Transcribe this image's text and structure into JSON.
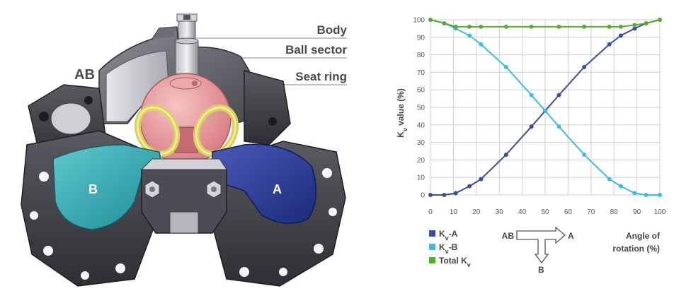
{
  "valve": {
    "labels": {
      "body": "Body",
      "ball_sector": "Ball sector",
      "seat_ring": "Seat ring"
    },
    "ports": {
      "ab": "AB",
      "a": "A",
      "b": "B"
    }
  },
  "chart_data": {
    "type": "line",
    "title": "",
    "ylabel_main": "K",
    "ylabel_sub": "v",
    "ylabel_rest": " value (%)",
    "xlabel_line1": "Angle of",
    "xlabel_line2": "rotation (%)",
    "xlim": [
      0,
      100
    ],
    "ylim": [
      0,
      100
    ],
    "x_ticks": [
      0,
      10,
      20,
      30,
      40,
      50,
      60,
      70,
      80,
      90,
      100
    ],
    "y_ticks": [
      0,
      10,
      20,
      30,
      40,
      50,
      60,
      70,
      80,
      90,
      100
    ],
    "grid": true,
    "legend_position": "bottom-left",
    "series": [
      {
        "name": "Kv-A",
        "name_main": "K",
        "name_sub": "v",
        "name_rest": "-A",
        "color": "#3a4ea0",
        "x": [
          0,
          6,
          11,
          17,
          22,
          33,
          44,
          50,
          56,
          67,
          78,
          83,
          89,
          94,
          100
        ],
        "y": [
          0,
          0,
          1,
          5,
          9,
          23,
          39,
          48,
          57,
          73,
          86,
          91,
          95,
          98,
          100
        ]
      },
      {
        "name": "Kv-B",
        "name_main": "K",
        "name_sub": "v",
        "name_rest": "-B",
        "color": "#3fbbe0",
        "x": [
          0,
          6,
          11,
          17,
          22,
          33,
          44,
          50,
          56,
          67,
          78,
          83,
          89,
          94,
          100
        ],
        "y": [
          100,
          98,
          95,
          91,
          86,
          73,
          57,
          48,
          39,
          23,
          9,
          5,
          1,
          0,
          0
        ]
      },
      {
        "name": "Total Kv",
        "name_main": "Total K",
        "name_sub": "v",
        "name_rest": "",
        "color": "#5aaa32",
        "x": [
          0,
          6,
          11,
          17,
          22,
          33,
          44,
          56,
          67,
          78,
          83,
          89,
          94,
          100
        ],
        "y": [
          100,
          98,
          96,
          96,
          96,
          96,
          96,
          96,
          96,
          96,
          96,
          97,
          98,
          100
        ]
      }
    ],
    "flow_icon": {
      "inlet": "AB",
      "outlet_a": "A",
      "outlet_b": "B"
    }
  }
}
